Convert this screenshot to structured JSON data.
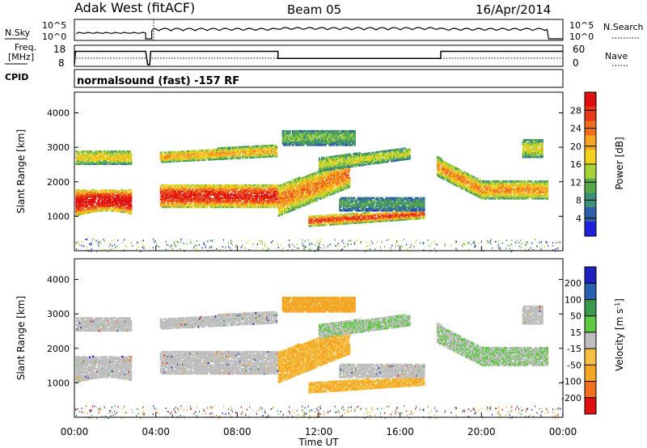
{
  "header": {
    "station": "Adak West (fitACF)",
    "beam": "Beam 05",
    "date": "16/Apr/2014"
  },
  "colors": {
    "power_scale": [
      "#1f1fe0",
      "#2f5fa8",
      "#3c8f78",
      "#5aa84c",
      "#a6d33a",
      "#f2d21e",
      "#f5a623",
      "#ef6e1e",
      "#e83a1a",
      "#e01010"
    ],
    "velocity_scale": [
      "#e01010",
      "#f07020",
      "#f5a623",
      "#f5c040",
      "#bebebe",
      "#5ec840",
      "#3a9a50",
      "#2a60b0",
      "#2020c0"
    ]
  },
  "chart_data": [
    {
      "type": "line",
      "id": "noise",
      "labels": {
        "left": "N.Sky",
        "right": "N.Search"
      },
      "left_ticks": [
        "10^5",
        "10^0"
      ],
      "right_ticks": [
        "10^5",
        "10^0"
      ],
      "xlim": [
        0,
        24
      ]
    },
    {
      "type": "line",
      "id": "frequency",
      "labels": {
        "left_top": "Freq.",
        "left_bottom": "[MHz]",
        "right": "Nave"
      },
      "left_ticks": [
        "18",
        "8"
      ],
      "right_ticks": [
        "60",
        "0"
      ],
      "ylim": [
        8,
        18
      ],
      "series": [
        {
          "kind": "freq",
          "x": [
            0.0,
            0.05,
            0.1,
            3.5,
            3.6,
            3.7,
            3.75,
            3.85,
            10.0,
            10.0,
            18.0,
            18.0,
            24.0
          ],
          "y": [
            8,
            15.5,
            15.5,
            15.5,
            8,
            8,
            15.5,
            15.5,
            15.5,
            11.5,
            11.5,
            15.5,
            15.5
          ]
        }
      ]
    },
    {
      "type": "text",
      "id": "cpid",
      "label": "CPID",
      "value": "normalsound (fast) -157 RF"
    },
    {
      "type": "heatmap",
      "id": "power",
      "ylabel": "Slant Range [km]",
      "yticks": [
        "1000",
        "2000",
        "3000",
        "4000"
      ],
      "ylim": [
        0,
        4600
      ],
      "xlim": [
        0,
        24
      ],
      "colorbar": {
        "label": "Power [dB]",
        "ticks": [
          "4",
          "8",
          "12",
          "16",
          "20",
          "24",
          "28"
        ],
        "range": [
          0,
          30
        ]
      }
    },
    {
      "type": "heatmap",
      "id": "velocity",
      "ylabel": "Slant Range [km]",
      "yticks": [
        "1000",
        "2000",
        "3000",
        "4000"
      ],
      "ylim": [
        0,
        4600
      ],
      "xlim": [
        0,
        24
      ],
      "xlabel": "Time UT",
      "xticks": [
        "00:00",
        "04:00",
        "08:00",
        "12:00",
        "16:00",
        "20:00",
        "00:00"
      ],
      "colorbar": {
        "label": "Velocity [m s^-1]",
        "ticks": [
          "200",
          "100",
          "50",
          "15",
          "-15",
          "-50",
          "-100",
          "-200"
        ],
        "range": [
          -250,
          250
        ]
      }
    }
  ]
}
